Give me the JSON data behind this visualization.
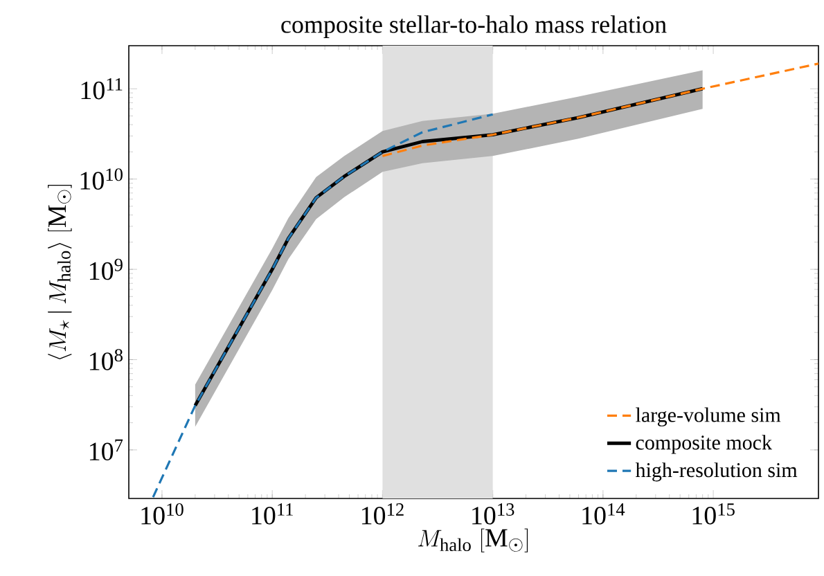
{
  "chart_data": {
    "type": "line",
    "title": "composite stellar-to-halo mass relation",
    "xlabel": "M_{\\rm halo}\\ [\\mathrm{M}_\\odot]",
    "ylabel": "\\langle M_\\star \\,|\\, M_{\\rm halo}\\rangle\\ [\\mathrm{M}_\\odot]",
    "log": "xy",
    "xlim": [
      5000000000.0,
      9000000000000000.0
    ],
    "ylim": [
      2900000.0,
      300000000000.0
    ],
    "xticks": [
      {
        "value": 10000000000.0,
        "label": "10$^{10}$"
      },
      {
        "value": 100000000000.0,
        "label": "10$^{11}$"
      },
      {
        "value": 1000000000000.0,
        "label": "10$^{12}$"
      },
      {
        "value": 10000000000000.0,
        "label": "10$^{13}$"
      },
      {
        "value": 100000000000000.0,
        "label": "10$^{14}$"
      },
      {
        "value": 1000000000000000.0,
        "label": "10$^{15}$"
      }
    ],
    "yticks": [
      {
        "value": 10000000.0,
        "label": "10$^{7}$"
      },
      {
        "value": 100000000.0,
        "label": "10$^{8}$"
      },
      {
        "value": 1000000000.0,
        "label": "10$^{9}$"
      },
      {
        "value": 10000000000.0,
        "label": "10$^{10}$"
      },
      {
        "value": 100000000000.0,
        "label": "10$^{11}$"
      }
    ],
    "bands": [
      {
        "axis": "x",
        "from": 1000000000000.0,
        "to": 10000000000000.0,
        "color": "#e0e0e0"
      }
    ],
    "legend": "bottom right",
    "grid": false,
    "series": [
      {
        "name": "large-volume sim",
        "color": "#ff7f0e",
        "line_style": "dashed",
        "x": [
          1000000000000.0,
          2300000000000.0,
          10000000000000.0,
          60000000000000.0,
          800000000000000.0,
          9000000000000000.0
        ],
        "values": [
          18000000000.0,
          23500000000.0,
          31000000000.0,
          48000000000.0,
          100000000000.0,
          190000000000.0
        ]
      },
      {
        "name": "composite mock",
        "color": "#000000",
        "line_style": "solid",
        "x": [
          20000000000.0,
          100000000000.0,
          140000000000.0,
          250000000000.0,
          450000000000.0,
          1000000000000.0,
          2300000000000.0,
          10000000000000.0,
          60000000000000.0,
          800000000000000.0
        ],
        "values": [
          31000000.0,
          1000000000.0,
          2200000000.0,
          6200000000.0,
          10700000000.0,
          20000000000.0,
          26000000000.0,
          31000000000.0,
          48000000000.0,
          100000000000.0
        ],
        "lower": [
          18000000.0,
          590000000.0,
          1300000000.0,
          3600000000.0,
          6300000000.0,
          12000000000.0,
          15000000000.0,
          18000000000.0,
          28000000000.0,
          60000000000.0
        ],
        "upper": [
          53000000.0,
          1700000000.0,
          3700000000.0,
          10500000000.0,
          18000000000.0,
          34000000000.0,
          44000000000.0,
          53000000000.0,
          82000000000.0,
          160000000000.0
        ]
      },
      {
        "name": "high-resolution sim",
        "color": "#1f77b4",
        "line_style": "dashed",
        "x": [
          8300000000.0,
          20000000000.0,
          100000000000.0,
          140000000000.0,
          250000000000.0,
          450000000000.0,
          1000000000000.0,
          2300000000000.0,
          10000000000000.0
        ],
        "values": [
          3000000.0,
          31000000.0,
          1000000000.0,
          2200000000.0,
          6200000000.0,
          10700000000.0,
          20000000000.0,
          33000000000.0,
          52000000000.0
        ]
      }
    ]
  }
}
